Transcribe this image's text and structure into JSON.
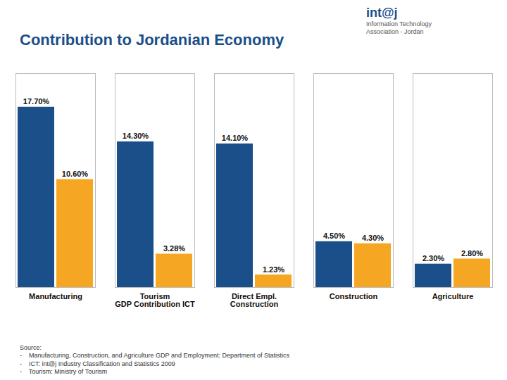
{
  "chart_data": {
    "type": "bar",
    "title": "Contribution to Jordanian Economy",
    "categories": [
      "Manufacturing",
      "Tourism\nGDP Contribution ICT",
      "Direct Empl.\nConstruction",
      "Construction",
      "Agriculture"
    ],
    "series": [
      {
        "color": "#1B4F8A",
        "values": [
          17.7,
          14.3,
          14.1,
          4.5,
          2.3
        ],
        "value_labels": [
          "17.70%",
          "14.30%",
          "14.10%",
          "4.50%",
          "2.30%"
        ]
      },
      {
        "color": "#F5A623",
        "values": [
          10.6,
          3.28,
          1.23,
          4.3,
          2.8
        ],
        "value_labels": [
          "10.60%",
          "3.28%",
          "1.23%",
          "4.30%",
          "2.80%"
        ]
      }
    ],
    "ylim": [
      0,
      21
    ],
    "grid": false,
    "data_labels": true,
    "tick_labels": "x",
    "annotations": [
      "int@j",
      "Information Technology\nAssociation - Jordan"
    ],
    "source": [
      "Source:",
      "-    Manufacturing, Construction, and Agriculture GDP and Employment: Department of Statistics",
      "-    ICT: int@j Industry Classification and Statistics 2009",
      "-    Tourism: Ministry of Tourism"
    ]
  }
}
